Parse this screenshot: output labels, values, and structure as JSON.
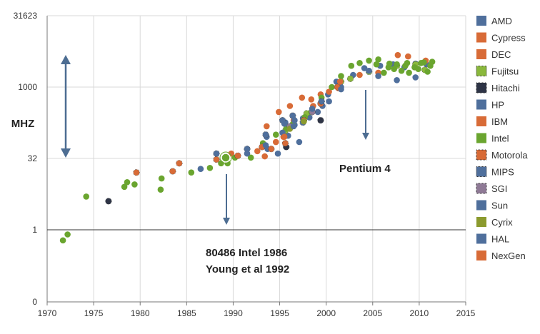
{
  "chart_data": {
    "type": "scatter",
    "title": "",
    "ylabel": "MHZ",
    "xlabel": "",
    "x_ticks": [
      "1970",
      "1975",
      "1980",
      "1985",
      "1990",
      "1995",
      "2000",
      "2005",
      "2010",
      "2015"
    ],
    "y_ticks": [
      "0",
      "1",
      "32",
      "1000",
      "31623"
    ],
    "y_scale": "log",
    "xlim": [
      1970,
      2015
    ],
    "annotations": [
      {
        "name": "pentium-4-label",
        "text": "Pentium 4",
        "x": 2004.4,
        "y": 1900
      },
      {
        "name": "intel-80486-label",
        "lines": [
          "80486 Intel 1986",
          "Young et al 1992"
        ],
        "x": 1989.5,
        "y": 32
      }
    ],
    "series": [
      {
        "name": "AMD",
        "color": "#4f6f9c",
        "points": [
          [
            1986.5,
            19
          ],
          [
            1993.7,
            50
          ],
          [
            1994.8,
            40
          ],
          [
            1995.9,
            95
          ],
          [
            1997.1,
            70
          ],
          [
            1998.2,
            230
          ],
          [
            1999.1,
            300
          ],
          [
            2000.2,
            700
          ],
          [
            2001.1,
            1300
          ],
          [
            2002.9,
            1800
          ],
          [
            2004.1,
            2500
          ],
          [
            2005.8,
            2800
          ],
          [
            2007.2,
            3000
          ],
          [
            2008.4,
            2600
          ],
          [
            2009.6,
            3100
          ],
          [
            2010.8,
            3000
          ]
        ]
      },
      {
        "name": "Cypress",
        "color": "#d86b37",
        "points": [
          [
            1989.8,
            40
          ],
          [
            1992.6,
            45
          ]
        ]
      },
      {
        "name": "DEC",
        "color": "#d86b37",
        "points": [
          [
            1993.6,
            150
          ],
          [
            1994.9,
            300
          ],
          [
            1996.1,
            400
          ],
          [
            1997.4,
            600
          ],
          [
            1998.4,
            550
          ],
          [
            1999.4,
            700
          ],
          [
            2000.3,
            800
          ],
          [
            2001.3,
            950
          ]
        ]
      },
      {
        "name": "Fujitsu",
        "color": "#8ab83c",
        "points": [
          [
            1995.6,
            120
          ],
          [
            1997.9,
            280
          ],
          [
            2001.6,
            1300
          ],
          [
            2002.6,
            1500
          ],
          [
            2004.6,
            2100
          ],
          [
            2007.6,
            2800
          ],
          [
            2009.6,
            3000
          ],
          [
            2010.6,
            2300
          ]
        ]
      },
      {
        "name": "Hitachi",
        "color": "#2e3446",
        "points": [
          [
            1976.6,
            4
          ],
          [
            1995.7,
            55
          ],
          [
            1999.4,
            200
          ]
        ]
      },
      {
        "name": "HP",
        "color": "#4f6f9c",
        "points": [
          [
            1993.6,
            90
          ],
          [
            1995.6,
            180
          ],
          [
            1996.6,
            160
          ],
          [
            1997.5,
            220
          ],
          [
            1999.6,
            400
          ],
          [
            2001.6,
            1000
          ]
        ]
      },
      {
        "name": "IBM",
        "color": "#d86b37",
        "points": [
          [
            1993.4,
            35
          ],
          [
            1994.6,
            70
          ],
          [
            1995.4,
            90
          ],
          [
            1996.5,
            200
          ],
          [
            1998.6,
            400
          ],
          [
            2001.5,
            1300
          ],
          [
            2003.6,
            1800
          ],
          [
            2005.6,
            2000
          ],
          [
            2007.7,
            4700
          ],
          [
            2008.8,
            4400
          ],
          [
            2010.7,
            3600
          ]
        ]
      },
      {
        "name": "Intel",
        "color": "#6aa52f",
        "points": [
          [
            1971.7,
            0.6
          ],
          [
            1972.2,
            0.8
          ],
          [
            1974.2,
            5
          ],
          [
            1978.3,
            8
          ],
          [
            1978.6,
            10
          ],
          [
            1979.4,
            9
          ],
          [
            1982.2,
            7
          ],
          [
            1982.3,
            12
          ],
          [
            1985.5,
            16
          ],
          [
            1987.5,
            20
          ],
          [
            1988.7,
            25
          ],
          [
            1989.4,
            25
          ],
          [
            1990.2,
            33
          ],
          [
            1991.9,
            33
          ],
          [
            1993.2,
            66
          ],
          [
            1994.6,
            100
          ],
          [
            1995.7,
            133
          ],
          [
            1996.4,
            166
          ],
          [
            1997.7,
            233
          ],
          [
            1998.4,
            300
          ],
          [
            1999.5,
            600
          ],
          [
            2000.6,
            1000
          ],
          [
            2001.6,
            1700
          ],
          [
            2002.7,
            2800
          ],
          [
            2003.6,
            3200
          ],
          [
            2004.6,
            3600
          ],
          [
            2005.6,
            3800
          ],
          [
            2006.7,
            2600
          ],
          [
            2007.6,
            3000
          ],
          [
            2008.5,
            2800
          ],
          [
            2009.5,
            2600
          ],
          [
            2010.5,
            3300
          ],
          [
            2011.4,
            3400
          ],
          [
            2005.4,
            3000
          ],
          [
            2006.2,
            2000
          ],
          [
            2007.3,
            2400
          ],
          [
            2008.1,
            2200
          ],
          [
            2008.9,
            2000
          ],
          [
            2009.9,
            2400
          ],
          [
            2010.9,
            2100
          ],
          [
            2011.2,
            2800
          ],
          [
            2006.8,
            3100
          ],
          [
            2008.7,
            3200
          ],
          [
            2010.2,
            3200
          ]
        ]
      },
      {
        "name": "Motorola",
        "color": "#d86b37",
        "points": [
          [
            1979.6,
            16
          ],
          [
            1983.5,
            17
          ],
          [
            1984.2,
            25
          ],
          [
            1988.2,
            30
          ],
          [
            1990.5,
            36
          ],
          [
            1993.1,
            55
          ],
          [
            1994.1,
            50
          ],
          [
            1995.6,
            66
          ],
          [
            1997.6,
            200
          ],
          [
            1999.4,
            450
          ],
          [
            2001.2,
            1000
          ]
        ]
      },
      {
        "name": "MIPS",
        "color": "#4f6f9c",
        "points": [
          [
            1988.2,
            40
          ],
          [
            1991.5,
            50
          ],
          [
            1993.5,
            100
          ],
          [
            1995.3,
            200
          ],
          [
            1996.4,
            250
          ],
          [
            1997.5,
            180
          ],
          [
            1999.5,
            500
          ]
        ]
      },
      {
        "name": "SGI",
        "color": "#8f7a96",
        "points": [
          [
            1996.1,
            150
          ],
          [
            1998.5,
            300
          ]
        ]
      },
      {
        "name": "Sun",
        "color": "#4f6f9c",
        "points": [
          [
            1991.5,
            40
          ],
          [
            1993.5,
            60
          ],
          [
            1995.5,
            170
          ],
          [
            1996.6,
            200
          ],
          [
            1998.5,
            350
          ],
          [
            2000.3,
            500
          ],
          [
            2001.6,
            900
          ],
          [
            2004.6,
            2200
          ],
          [
            2005.6,
            1700
          ],
          [
            2007.6,
            1400
          ],
          [
            2009.6,
            1600
          ]
        ]
      },
      {
        "name": "Cyrix",
        "color": "#8b9a2e",
        "points": [
          [
            1996.1,
            133
          ],
          [
            1997.6,
            190
          ]
        ]
      },
      {
        "name": "HAL",
        "color": "#4f6f9c",
        "points": [
          [
            1995.3,
            110
          ],
          [
            1996.5,
            150
          ]
        ]
      },
      {
        "name": "NexGen",
        "color": "#d86b37",
        "points": [
          [
            1994.6,
            70
          ],
          [
            1995.5,
            90
          ]
        ]
      }
    ]
  }
}
